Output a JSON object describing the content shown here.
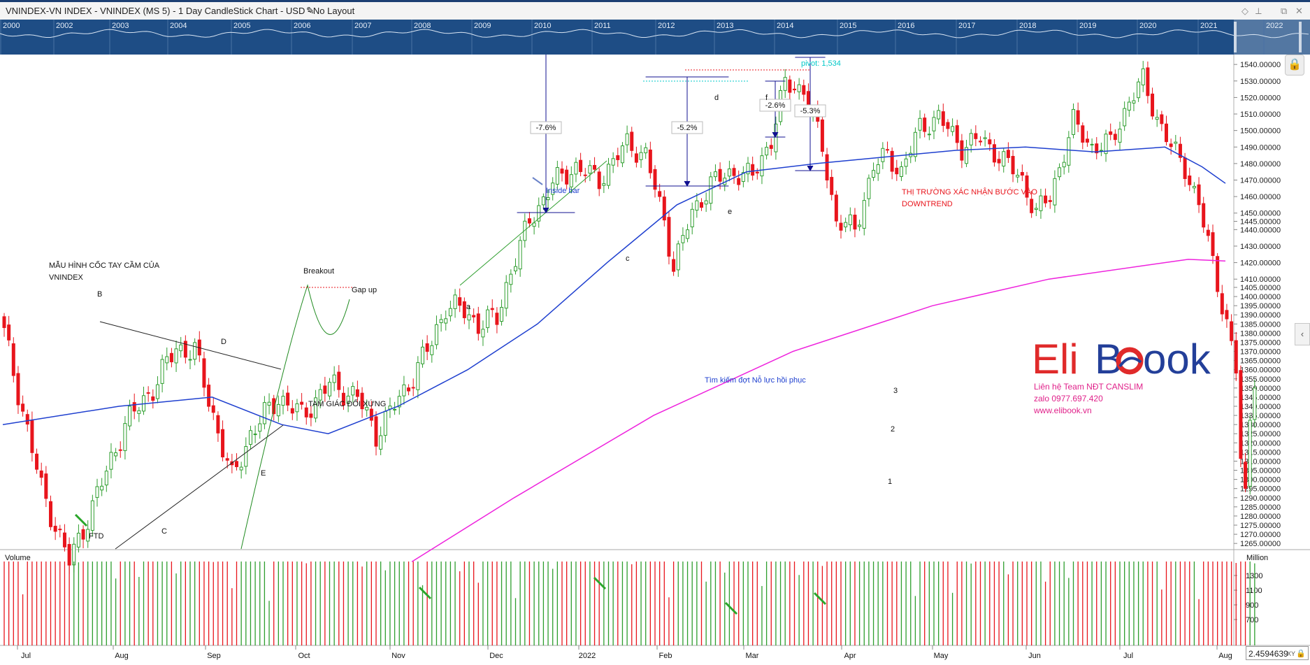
{
  "window": {
    "title": "VNINDEX-VN INDEX - VNINDEX (MS 5) - 1 Day CandleStick Chart - USD - No Layout",
    "controls": [
      "◇",
      "⟂",
      "⧉",
      "✕"
    ]
  },
  "overview": {
    "years": [
      "2000",
      "2002",
      "2003",
      "2004",
      "2005",
      "2006",
      "2007",
      "2008",
      "2009",
      "2010",
      "2011",
      "2012",
      "2013",
      "2014",
      "2015",
      "2016",
      "2017",
      "2018",
      "2019",
      "2020",
      "2021",
      "2022"
    ]
  },
  "chart_data": {
    "type": "candlestick",
    "symbol": "VNINDEX",
    "price_axis": {
      "ticks": [
        "1265.00000",
        "1270.00000",
        "1275.00000",
        "1280.00000",
        "1285.00000",
        "1290.00000",
        "1295.00000",
        "1300.00000",
        "1305.00000",
        "1310.00000",
        "1315.00000",
        "1320.00000",
        "1325.00000",
        "1330.00000",
        "1335.00000",
        "1340.00000",
        "1345.00000",
        "1350.00000",
        "1355.00000",
        "1360.00000",
        "1365.00000",
        "1370.00000",
        "1375.00000",
        "1380.00000",
        "1385.00000",
        "1390.00000",
        "1395.00000",
        "1400.00000",
        "1405.00000",
        "1410.00000",
        "1420.00000",
        "1430.00000",
        "1440.00000",
        "1445.00000",
        "1450.00000",
        "1460.00000",
        "1470.00000",
        "1480.00000",
        "1490.00000",
        "1500.00000",
        "1510.00000",
        "1520.00000",
        "1530.00000",
        "1540.00000"
      ]
    },
    "time_axis": [
      "Jul",
      "Aug",
      "Sep",
      "Oct",
      "Nov",
      "Dec",
      "2022",
      "Feb",
      "Mar",
      "Apr",
      "May",
      "Jun",
      "Jul",
      "Aug"
    ],
    "close_anchors": [
      {
        "bar": 0,
        "close": 1380
      },
      {
        "bar": 8,
        "close": 1295
      },
      {
        "bar": 14,
        "close": 1255
      },
      {
        "bar": 19,
        "close": 1285
      },
      {
        "bar": 26,
        "close": 1330
      },
      {
        "bar": 32,
        "close": 1350
      },
      {
        "bar": 37,
        "close": 1372
      },
      {
        "bar": 41,
        "close": 1370
      },
      {
        "bar": 45,
        "close": 1335
      },
      {
        "bar": 49,
        "close": 1300
      },
      {
        "bar": 53,
        "close": 1325
      },
      {
        "bar": 59,
        "close": 1345
      },
      {
        "bar": 64,
        "close": 1335
      },
      {
        "bar": 70,
        "close": 1352
      },
      {
        "bar": 76,
        "close": 1345
      },
      {
        "bar": 80,
        "close": 1325
      },
      {
        "bar": 86,
        "close": 1348
      },
      {
        "bar": 92,
        "close": 1375
      },
      {
        "bar": 95,
        "close": 1395
      },
      {
        "bar": 99,
        "close": 1392
      },
      {
        "bar": 102,
        "close": 1385
      },
      {
        "bar": 106,
        "close": 1388
      },
      {
        "bar": 109,
        "close": 1415
      },
      {
        "bar": 113,
        "close": 1445
      },
      {
        "bar": 118,
        "close": 1468
      },
      {
        "bar": 123,
        "close": 1478
      },
      {
        "bar": 128,
        "close": 1470
      },
      {
        "bar": 134,
        "close": 1492
      },
      {
        "bar": 138,
        "close": 1485
      },
      {
        "bar": 142,
        "close": 1445
      },
      {
        "bar": 144,
        "close": 1418
      },
      {
        "bar": 148,
        "close": 1450
      },
      {
        "bar": 152,
        "close": 1468
      },
      {
        "bar": 157,
        "close": 1475
      },
      {
        "bar": 161,
        "close": 1472
      },
      {
        "bar": 165,
        "close": 1495
      },
      {
        "bar": 168,
        "close": 1528
      },
      {
        "bar": 172,
        "close": 1525
      },
      {
        "bar": 176,
        "close": 1490
      },
      {
        "bar": 179,
        "close": 1445
      },
      {
        "bar": 183,
        "close": 1440
      },
      {
        "bar": 187,
        "close": 1478
      },
      {
        "bar": 190,
        "close": 1485
      },
      {
        "bar": 193,
        "close": 1475
      },
      {
        "bar": 197,
        "close": 1502
      },
      {
        "bar": 201,
        "close": 1508
      },
      {
        "bar": 206,
        "close": 1490
      },
      {
        "bar": 210,
        "close": 1495
      },
      {
        "bar": 214,
        "close": 1485
      },
      {
        "bar": 219,
        "close": 1470
      },
      {
        "bar": 222,
        "close": 1450
      },
      {
        "bar": 225,
        "close": 1460
      },
      {
        "bar": 230,
        "close": 1505
      },
      {
        "bar": 234,
        "close": 1490
      },
      {
        "bar": 238,
        "close": 1492
      },
      {
        "bar": 242,
        "close": 1518
      },
      {
        "bar": 245,
        "close": 1530
      },
      {
        "bar": 248,
        "close": 1508
      },
      {
        "bar": 251,
        "close": 1490
      },
      {
        "bar": 254,
        "close": 1478
      },
      {
        "bar": 257,
        "close": 1455
      },
      {
        "bar": 260,
        "close": 1420
      },
      {
        "bar": 263,
        "close": 1385
      },
      {
        "bar": 265,
        "close": 1360
      },
      {
        "bar": 266,
        "close": 1310
      },
      {
        "bar": 267,
        "close": 1290
      },
      {
        "bar": 268,
        "close": 1335
      },
      {
        "bar": 269,
        "close": 1350
      }
    ],
    "ma50": [
      [
        0,
        1330
      ],
      [
        25,
        1340
      ],
      [
        45,
        1345
      ],
      [
        60,
        1330
      ],
      [
        70,
        1325
      ],
      [
        85,
        1340
      ],
      [
        100,
        1360
      ],
      [
        115,
        1385
      ],
      [
        130,
        1420
      ],
      [
        145,
        1455
      ],
      [
        160,
        1475
      ],
      [
        175,
        1480
      ],
      [
        190,
        1484
      ],
      [
        205,
        1488
      ],
      [
        220,
        1490
      ],
      [
        235,
        1487
      ],
      [
        250,
        1490
      ],
      [
        258,
        1478
      ],
      [
        263,
        1468
      ]
    ],
    "ma200": [
      [
        88,
        1255
      ],
      [
        110,
        1290
      ],
      [
        140,
        1335
      ],
      [
        170,
        1370
      ],
      [
        200,
        1395
      ],
      [
        225,
        1410
      ],
      [
        245,
        1418
      ],
      [
        255,
        1422
      ],
      [
        263,
        1421
      ]
    ],
    "volume": {
      "title": "Volume",
      "unit": "Million",
      "ticks": [
        "1300",
        "1100",
        "900",
        "700"
      ]
    },
    "annotations": {
      "cup_title_1": "MẪU HÌNH CỐC TAY CẦM CỦA",
      "cup_title_2": "VNINDEX",
      "breakout": "Breakout",
      "gap_up": "Gap up",
      "triangle": "TAM GIÁC ĐỐI XỨNG",
      "ftd": "FTD",
      "B": "B",
      "C": "C",
      "D": "D",
      "E": "E",
      "a": "a",
      "c": "c",
      "d": "d",
      "e": "e",
      "f": "f",
      "inside_bar": "Inside bar",
      "pct1": "-7.6%",
      "pct2": "-5.2%",
      "pct3": "-2.6%",
      "pct4": "-5.3%",
      "pivot": "pivot: 1,534",
      "confirm_1": "THỊ TRƯỜNG XÁC NHẬN BƯỚC VÀO",
      "confirm_2": "DOWNTREND",
      "recovery": "Tìm kiếm đợt Nỗ lực hồi phục",
      "n1": "1",
      "n2": "2",
      "n3": "3"
    },
    "colors": {
      "up": "#2e9e2e",
      "down": "#e8151c",
      "ma50": "#1e3fcf",
      "ma200": "#ee22dd"
    }
  },
  "watermark": {
    "logo_eli": "Eli",
    "logo_b": "B",
    "logo_ook": "ook",
    "line1": "Liên hệ Team NĐT CANSLIM",
    "line2": "zalo 0977.697.420",
    "line3": "www.elibook.vn"
  },
  "footer": {
    "xy_value": "2.4594639",
    "xy_label": "XY"
  }
}
